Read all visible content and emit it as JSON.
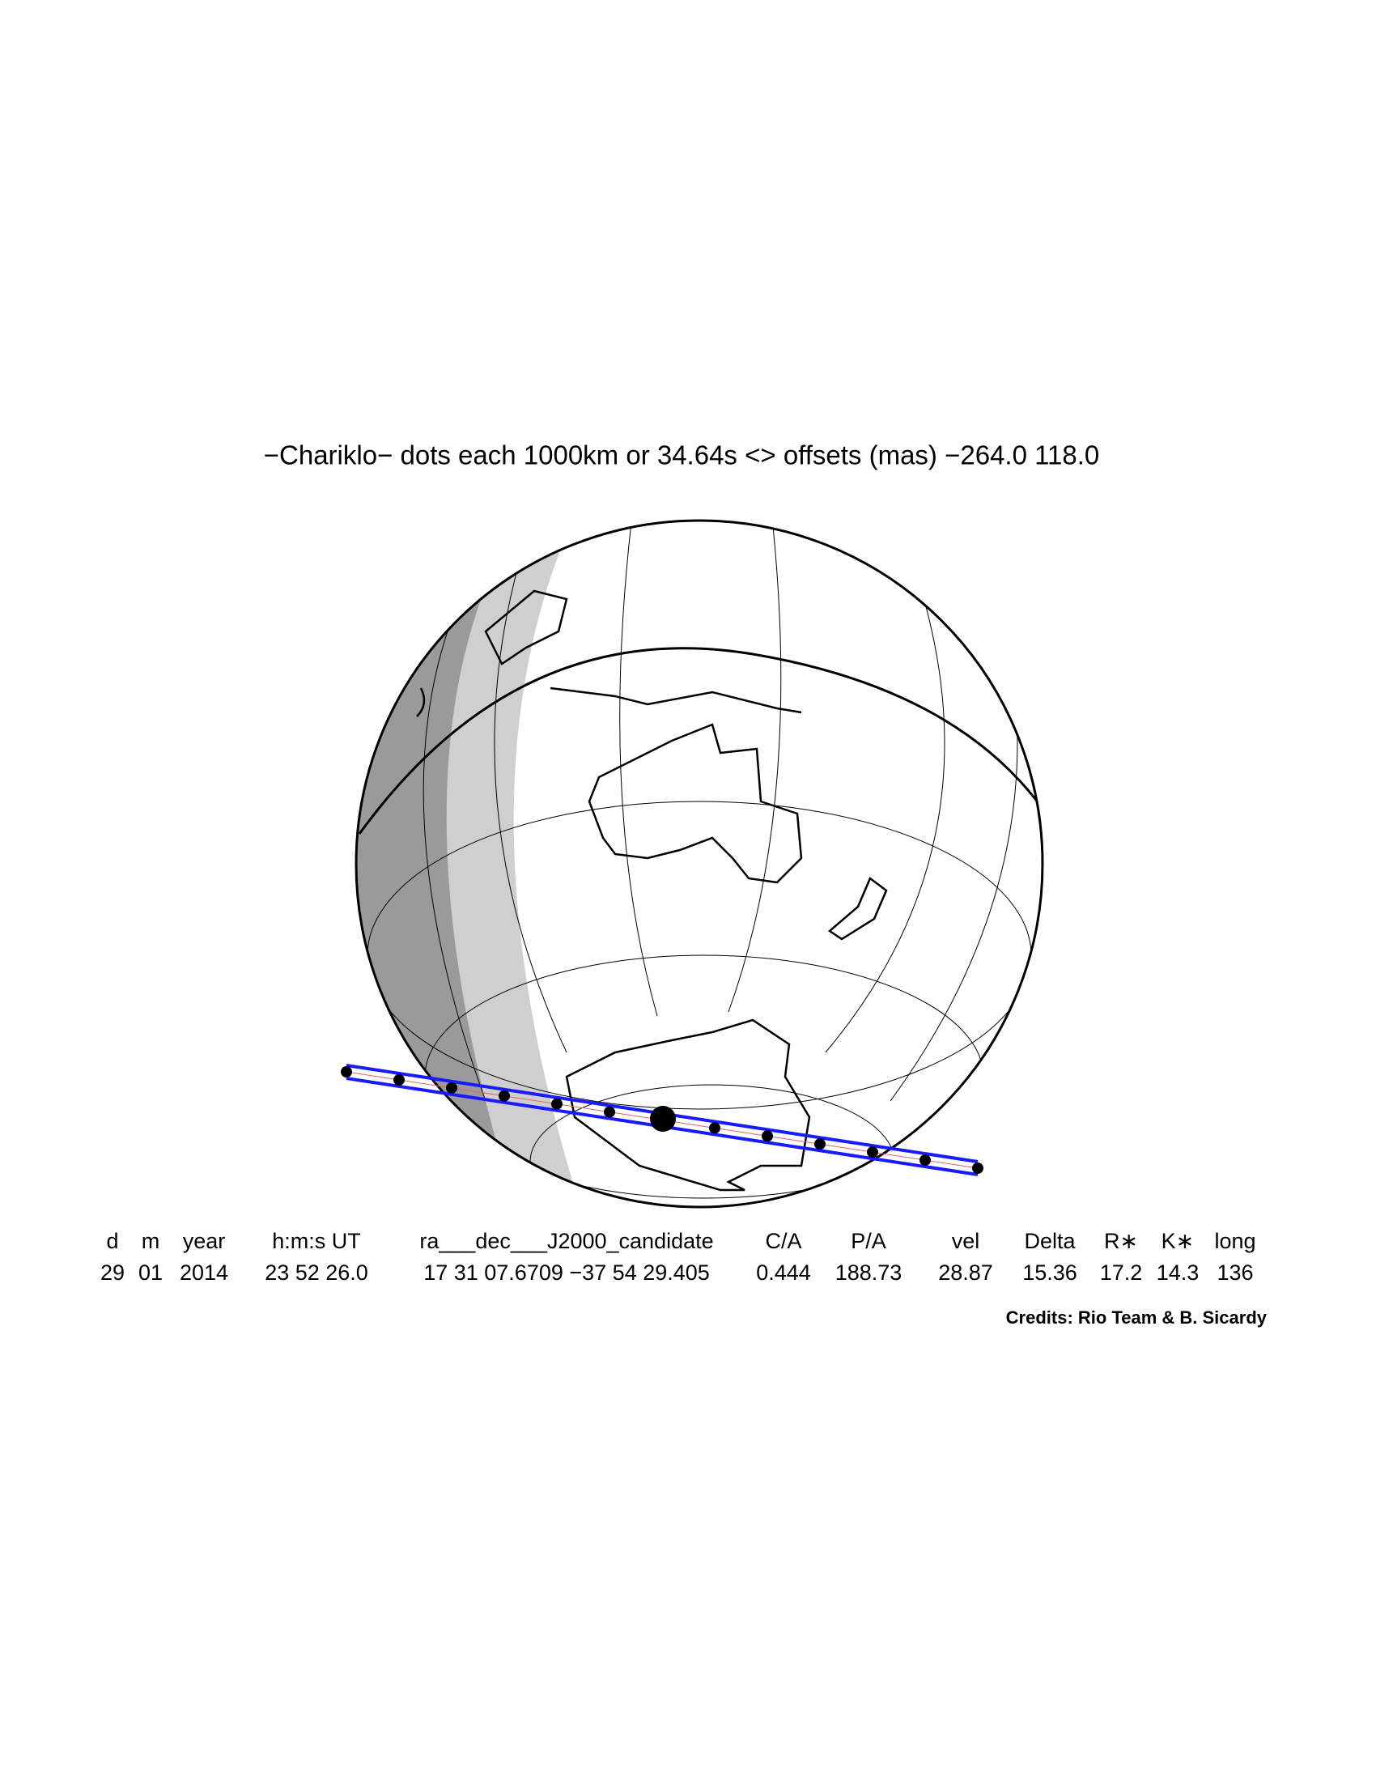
{
  "title": "−Chariklo− dots each 1000km or 34.64s <> offsets (mas) −264.0  118.0",
  "table": {
    "header": [
      "d",
      "m",
      "year",
      "h:m:s UT",
      "ra___dec___J2000_candidate",
      "C/A",
      "P/A",
      "vel",
      "Delta",
      "R∗",
      "K∗",
      "long"
    ],
    "rows": [
      [
        "29",
        "01",
        "2014",
        "23 52 26.0",
        "17 31 07.6709 −37 54 29.405",
        "0.444",
        "188.73",
        "28.87",
        "15.36",
        "17.2",
        "14.3",
        "136"
      ]
    ]
  },
  "credits": "Credits: Rio Team & B. Sicardy"
}
